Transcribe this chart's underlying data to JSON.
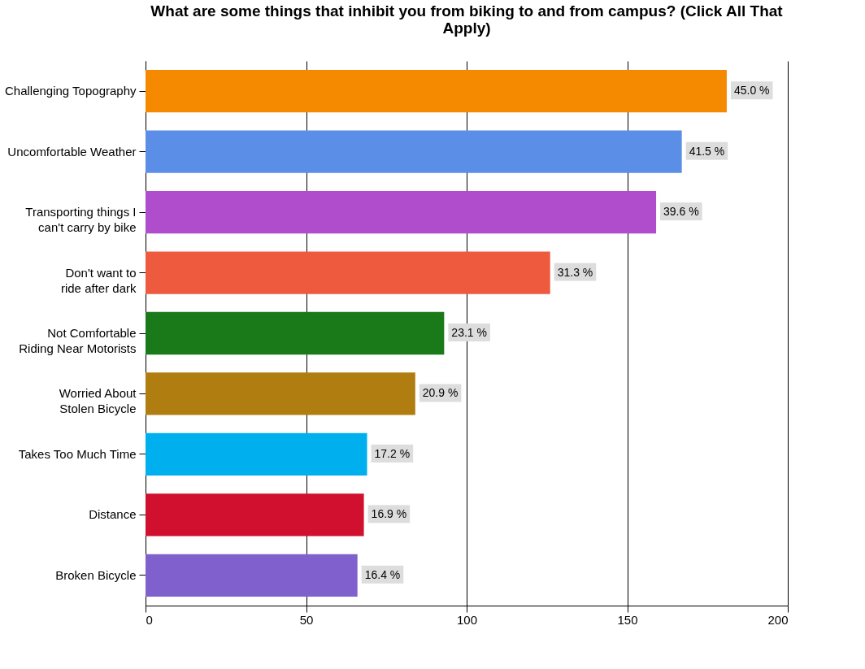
{
  "chart_data": {
    "type": "bar",
    "orientation": "horizontal",
    "title": "What are some things that inhibit you from biking to and from campus? (Click All That Apply)",
    "categories": [
      "Challenging Topography",
      "Uncomfortable Weather",
      "Transporting things I\ncan't carry by bike",
      "Don't want to\nride after dark",
      "Not Comfortable\nRiding Near Motorists",
      "Worried About\nStolen Bicycle",
      "Takes Too Much Time",
      "Distance",
      "Broken Bicycle"
    ],
    "values": [
      181,
      167,
      159,
      126,
      93,
      84,
      69,
      68,
      66
    ],
    "colors": [
      "#f58a00",
      "#5b8ee6",
      "#b04dcc",
      "#ee5a3e",
      "#1a7a1a",
      "#b07d10",
      "#00b0ee",
      "#d0102e",
      "#8060cc"
    ],
    "annotations": [
      {
        "text": "45.0 %",
        "x": 181,
        "y": "Challenging Topography"
      },
      {
        "text": "41.5 %",
        "x": 167,
        "y": "Uncomfortable Weather"
      },
      {
        "text": "39.6 %",
        "x": 159,
        "y": "Transporting things I\ncan't carry by bike"
      },
      {
        "text": "31.3 %",
        "x": 126,
        "y": "Don't want to\nride after dark"
      },
      {
        "text": "23.1 %",
        "x": 93,
        "y": "Not Comfortable\nRiding Near Motorists"
      },
      {
        "text": "20.9 %",
        "x": 84,
        "y": "Worried About\nStolen Bicycle"
      },
      {
        "text": "17.2 %",
        "x": 69,
        "y": "Takes Too Much Time"
      },
      {
        "text": "16.9 %",
        "x": 68,
        "y": "Distance"
      },
      {
        "text": "16.4 %",
        "x": 66,
        "y": "Broken Bicycle"
      }
    ],
    "xlim": [
      0,
      200
    ],
    "xticks": [
      0,
      50,
      100,
      150,
      200
    ],
    "grid": "x",
    "legend": false
  }
}
